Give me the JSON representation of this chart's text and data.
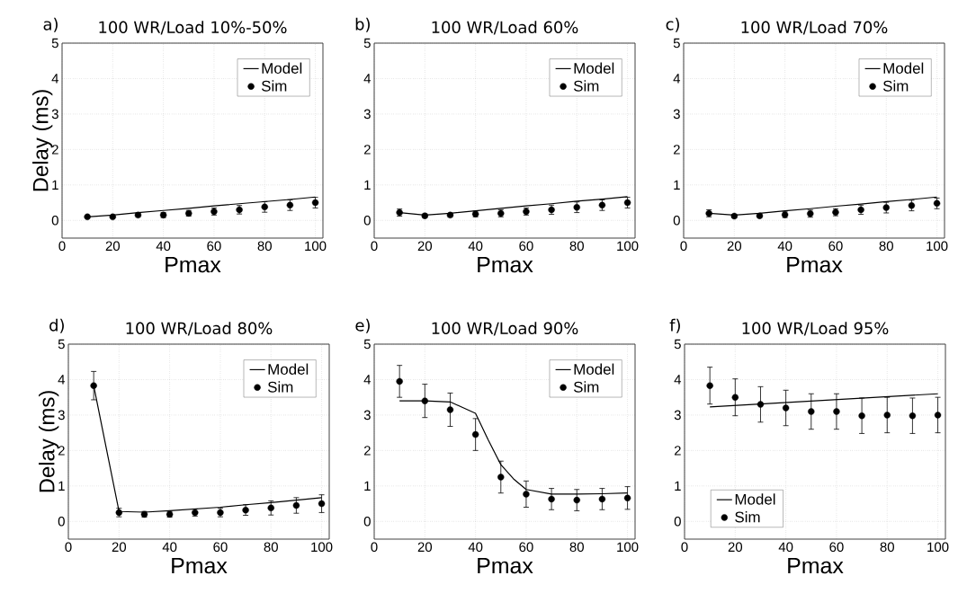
{
  "chart_data": [
    {
      "type": "line",
      "title": "100 WR/Load 10%-50%",
      "annotations": [
        "a)"
      ],
      "xlabel": "Pmax",
      "ylabel": "Delay (ms)",
      "xlim": [
        0,
        103
      ],
      "ylim": [
        -0.5,
        5
      ],
      "xticks": [
        0,
        20,
        40,
        60,
        80,
        100
      ],
      "yticks": [
        0,
        1,
        2,
        3,
        4,
        5
      ],
      "grid": true,
      "legend": "top right",
      "series": [
        {
          "name": "Model",
          "type": "line",
          "color": "#000000",
          "marker": "none",
          "line_style": "solid",
          "x": [
            10,
            20,
            30,
            40,
            50,
            60,
            70,
            80,
            90,
            100
          ],
          "values": [
            0.1,
            0.15,
            0.22,
            0.28,
            0.34,
            0.41,
            0.47,
            0.53,
            0.59,
            0.66
          ]
        },
        {
          "name": "Sim",
          "type": "scatter",
          "color": "#000000",
          "marker": "circle",
          "x": [
            10,
            20,
            30,
            40,
            50,
            60,
            70,
            80,
            90,
            100
          ],
          "values": [
            0.1,
            0.1,
            0.15,
            0.15,
            0.2,
            0.25,
            0.3,
            0.38,
            0.43,
            0.5
          ],
          "errors": [
            null,
            null,
            0.05,
            0.07,
            0.08,
            0.1,
            0.12,
            0.15,
            0.15,
            0.15
          ]
        }
      ]
    },
    {
      "type": "line",
      "title": "100 WR/Load 60%",
      "annotations": [
        "b)"
      ],
      "xlabel": "Pmax",
      "xlim": [
        0,
        103
      ],
      "ylim": [
        -0.5,
        5
      ],
      "xticks": [
        0,
        20,
        40,
        60,
        80,
        100
      ],
      "yticks": [
        0,
        1,
        2,
        3,
        4,
        5
      ],
      "grid": true,
      "legend": "top right",
      "series": [
        {
          "name": "Model",
          "type": "line",
          "color": "#000000",
          "marker": "none",
          "line_style": "solid",
          "x": [
            10,
            20,
            30,
            40,
            50,
            60,
            70,
            80,
            90,
            100
          ],
          "values": [
            0.22,
            0.15,
            0.2,
            0.27,
            0.34,
            0.41,
            0.47,
            0.54,
            0.6,
            0.67
          ]
        },
        {
          "name": "Sim",
          "type": "scatter",
          "color": "#000000",
          "marker": "circle",
          "x": [
            10,
            20,
            30,
            40,
            50,
            60,
            70,
            80,
            90,
            100
          ],
          "values": [
            0.22,
            0.13,
            0.15,
            0.18,
            0.2,
            0.25,
            0.3,
            0.37,
            0.43,
            0.5
          ],
          "errors": [
            0.1,
            0.05,
            0.05,
            0.08,
            0.1,
            0.1,
            0.13,
            0.15,
            0.15,
            0.15
          ]
        }
      ]
    },
    {
      "type": "line",
      "title": "100 WR/Load 70%",
      "annotations": [
        "c)"
      ],
      "xlabel": "Pmax",
      "xlim": [
        0,
        103
      ],
      "ylim": [
        -0.5,
        5
      ],
      "xticks": [
        0,
        20,
        40,
        60,
        80,
        100
      ],
      "yticks": [
        0,
        1,
        2,
        3,
        4,
        5
      ],
      "grid": true,
      "legend": "top right",
      "series": [
        {
          "name": "Model",
          "type": "line",
          "color": "#000000",
          "marker": "none",
          "line_style": "solid",
          "x": [
            10,
            20,
            30,
            40,
            50,
            60,
            70,
            80,
            90,
            100
          ],
          "values": [
            0.2,
            0.15,
            0.2,
            0.27,
            0.33,
            0.4,
            0.46,
            0.53,
            0.59,
            0.66
          ]
        },
        {
          "name": "Sim",
          "type": "scatter",
          "color": "#000000",
          "marker": "circle",
          "x": [
            10,
            20,
            30,
            40,
            50,
            60,
            70,
            80,
            90,
            100
          ],
          "values": [
            0.2,
            0.12,
            0.13,
            0.16,
            0.19,
            0.23,
            0.3,
            0.36,
            0.42,
            0.48
          ],
          "errors": [
            0.1,
            0.05,
            0.05,
            0.08,
            0.1,
            0.1,
            0.13,
            0.15,
            0.15,
            0.15
          ]
        }
      ]
    },
    {
      "type": "line",
      "title": "100 WR/Load 80%",
      "annotations": [
        "d)"
      ],
      "xlabel": "Pmax",
      "ylabel": "Delay (ms)",
      "xlim": [
        0,
        103
      ],
      "ylim": [
        -0.5,
        5
      ],
      "xticks": [
        0,
        20,
        40,
        60,
        80,
        100
      ],
      "yticks": [
        0,
        1,
        2,
        3,
        4,
        5
      ],
      "grid": true,
      "legend": "top right",
      "series": [
        {
          "name": "Model",
          "type": "line",
          "color": "#000000",
          "marker": "none",
          "line_style": "solid",
          "x": [
            10,
            20,
            30,
            40,
            50,
            60,
            70,
            80,
            90,
            100
          ],
          "values": [
            3.83,
            0.28,
            0.26,
            0.3,
            0.35,
            0.4,
            0.47,
            0.53,
            0.6,
            0.67
          ]
        },
        {
          "name": "Sim",
          "type": "scatter",
          "color": "#000000",
          "marker": "circle",
          "x": [
            10,
            20,
            30,
            40,
            50,
            60,
            70,
            80,
            90,
            100
          ],
          "values": [
            3.83,
            0.25,
            0.2,
            0.2,
            0.25,
            0.25,
            0.32,
            0.38,
            0.45,
            0.5
          ],
          "errors": [
            0.4,
            0.12,
            0.08,
            0.08,
            0.1,
            0.12,
            0.15,
            0.2,
            0.22,
            0.25
          ]
        }
      ]
    },
    {
      "type": "line",
      "title": "100 WR/Load 90%",
      "annotations": [
        "e)"
      ],
      "xlabel": "Pmax",
      "xlim": [
        0,
        103
      ],
      "ylim": [
        -0.5,
        5
      ],
      "xticks": [
        0,
        20,
        40,
        60,
        80,
        100
      ],
      "yticks": [
        0,
        1,
        2,
        3,
        4,
        5
      ],
      "grid": true,
      "legend": "top right",
      "series": [
        {
          "name": "Model",
          "type": "line",
          "color": "#000000",
          "marker": "none",
          "line_style": "solid",
          "x": [
            10,
            20,
            30,
            40,
            45,
            50,
            55,
            60,
            70,
            80,
            90,
            100
          ],
          "values": [
            3.4,
            3.4,
            3.37,
            3.05,
            2.3,
            1.6,
            1.2,
            0.9,
            0.77,
            0.77,
            0.78,
            0.8
          ]
        },
        {
          "name": "Sim",
          "type": "scatter",
          "color": "#000000",
          "marker": "circle",
          "x": [
            10,
            20,
            30,
            40,
            50,
            60,
            70,
            80,
            90,
            100
          ],
          "values": [
            3.95,
            3.4,
            3.15,
            2.45,
            1.25,
            0.77,
            0.63,
            0.6,
            0.63,
            0.66
          ],
          "errors": [
            0.45,
            0.47,
            0.47,
            0.45,
            0.45,
            0.37,
            0.3,
            0.3,
            0.3,
            0.32
          ]
        }
      ]
    },
    {
      "type": "line",
      "title": "100 WR/Load 95%",
      "annotations": [
        "f)"
      ],
      "xlabel": "Pmax",
      "xlim": [
        0,
        103
      ],
      "ylim": [
        -0.5,
        5
      ],
      "xticks": [
        0,
        20,
        40,
        60,
        80,
        100
      ],
      "yticks": [
        0,
        1,
        2,
        3,
        4,
        5
      ],
      "grid": true,
      "legend": "bottom left",
      "series": [
        {
          "name": "Model",
          "type": "line",
          "color": "#000000",
          "marker": "none",
          "line_style": "solid",
          "x": [
            10,
            100
          ],
          "values": [
            3.23,
            3.6
          ]
        },
        {
          "name": "Sim",
          "type": "scatter",
          "color": "#000000",
          "marker": "circle",
          "x": [
            10,
            20,
            30,
            40,
            50,
            60,
            70,
            80,
            90,
            100
          ],
          "values": [
            3.83,
            3.5,
            3.3,
            3.2,
            3.1,
            3.1,
            2.98,
            3.0,
            2.98,
            3.0
          ],
          "errors": [
            0.52,
            0.52,
            0.5,
            0.5,
            0.5,
            0.5,
            0.5,
            0.5,
            0.5,
            0.5
          ]
        }
      ]
    }
  ]
}
